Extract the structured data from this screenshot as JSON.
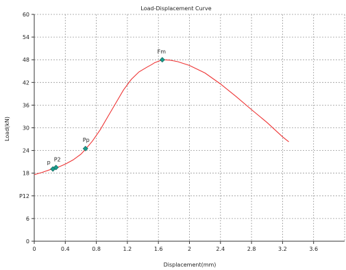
{
  "chart_data": {
    "type": "line",
    "title": "Load-Displacement Curve",
    "xlabel": "Displacement(mm)",
    "ylabel": "Load(kN)",
    "xlim": [
      0,
      4.0
    ],
    "ylim": [
      0,
      60
    ],
    "x_ticks": [
      0,
      0.4,
      0.8,
      1.2,
      1.6,
      2,
      2.4,
      2.8,
      3.2,
      3.6
    ],
    "x_tick_labels": [
      "0",
      "0.4",
      "0.8",
      "1.2",
      "1.6",
      "2",
      "2.4",
      "2.8",
      "3.2",
      "3.6"
    ],
    "y_ticks": [
      0,
      6,
      12,
      18,
      24,
      30,
      36,
      42,
      48,
      54,
      60
    ],
    "y_tick_labels": [
      "0",
      "6",
      "P12",
      "18",
      "24",
      "30",
      "36",
      "42",
      "48",
      "54",
      "60"
    ],
    "grid": true,
    "line_color": "#ee3333",
    "marker_color": "#1a9c8c",
    "series": [
      {
        "x": [
          0.0,
          0.1,
          0.2,
          0.25,
          0.3,
          0.4,
          0.5,
          0.6,
          0.66,
          0.75,
          0.85,
          0.95,
          1.05,
          1.15,
          1.25,
          1.35,
          1.45,
          1.52,
          1.55,
          1.6,
          1.66,
          1.75,
          1.85,
          2.0,
          2.2,
          2.4,
          2.6,
          2.8,
          3.0,
          3.2,
          3.28
        ],
        "y": [
          17.6,
          18.2,
          18.9,
          19.2,
          19.5,
          20.4,
          21.5,
          23.0,
          24.3,
          26.5,
          29.5,
          33.0,
          36.5,
          40.0,
          42.8,
          44.8,
          46.0,
          46.8,
          47.2,
          47.6,
          48.0,
          47.9,
          47.5,
          46.5,
          44.5,
          41.6,
          38.3,
          34.8,
          31.4,
          27.6,
          26.3
        ]
      }
    ],
    "points": [
      {
        "label": "p",
        "x": 0.24,
        "y": 19.1
      },
      {
        "label": "P2",
        "x": 0.28,
        "y": 19.5
      },
      {
        "label": "Pp",
        "x": 0.66,
        "y": 24.5
      },
      {
        "label": "Fm",
        "x": 1.65,
        "y": 48.0
      }
    ]
  }
}
